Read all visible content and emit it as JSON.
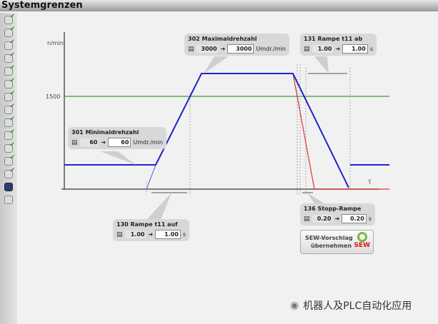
{
  "title": "Systemgrenzen",
  "sidebar": {
    "checked_count": 13,
    "items": [
      "checked",
      "checked",
      "checked",
      "checked",
      "checked",
      "checked",
      "checked",
      "checked",
      "checked",
      "checked",
      "checked",
      "checked",
      "checked",
      "active",
      "plain"
    ]
  },
  "chart": {
    "y_label": "n/min",
    "y_tick": "1500",
    "x_label": "t",
    "colors": {
      "speed": "#2222cc",
      "stop": "#dd3333",
      "limit": "#33a033"
    }
  },
  "params": {
    "p301": {
      "title": "301 Minimaldrehzahl",
      "current": "60",
      "value": "60",
      "unit": "Umdr./min"
    },
    "p302": {
      "title": "302 Maximaldrehzahl",
      "current": "3000",
      "value": "3000",
      "unit": "Umdr./min"
    },
    "p131": {
      "title": "131 Rampe t11 ab",
      "current": "1.00",
      "value": "1.00",
      "unit": "s"
    },
    "p130": {
      "title": "130 Rampe t11 auf",
      "current": "1.00",
      "value": "1.00",
      "unit": "s"
    },
    "p136": {
      "title": "136 Stopp-Rampe",
      "current": "0.20",
      "value": "0.20",
      "unit": "s"
    }
  },
  "button": {
    "line1": "SEW-Vorschlag",
    "line2": "übernehmen",
    "logo": "SEW"
  },
  "watermark": "机器人及PLC自动化应用"
}
